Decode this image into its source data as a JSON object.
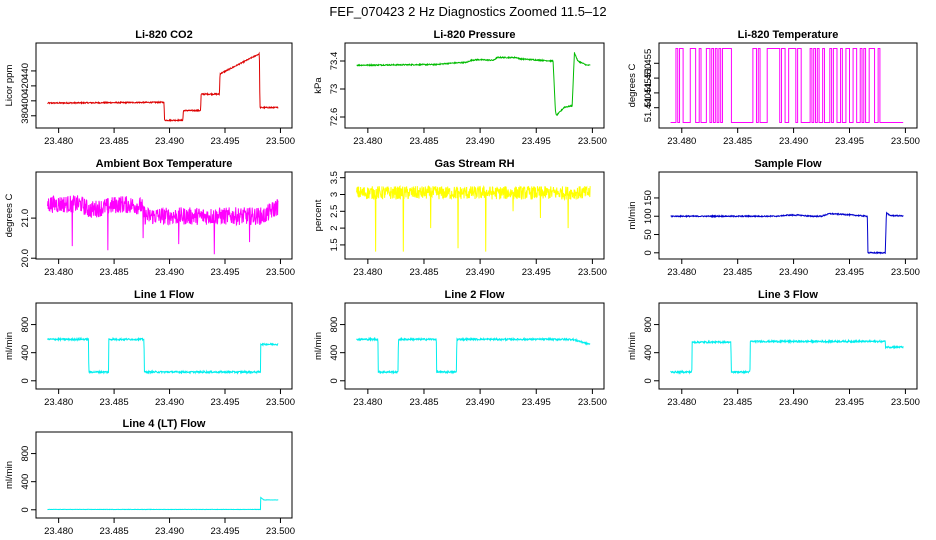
{
  "page": {
    "title": "FEF_070423  2 Hz Diagnostics Zoomed 11.5–12"
  },
  "chart_data": [
    {
      "type": "line",
      "title": "Li-820 CO2",
      "ylabel": "Licor ppm",
      "color": "#dd0000",
      "xlim": [
        23.4785,
        23.5005
      ],
      "ylim": [
        369,
        472
      ],
      "xticks": [
        23.48,
        23.485,
        23.49,
        23.495,
        23.5
      ],
      "yticks": [
        380,
        400,
        420,
        440
      ],
      "x": [
        23.479,
        23.4895,
        23.48955,
        23.4912,
        23.49125,
        23.4928,
        23.49285,
        23.4945,
        23.49455,
        23.4981,
        23.49815,
        23.4998
      ],
      "values": [
        397,
        398,
        374,
        374,
        387,
        387,
        409,
        409,
        436,
        463,
        391,
        391
      ],
      "noise": 0.8
    },
    {
      "type": "line",
      "title": "Li-820 Pressure",
      "ylabel": "kPa",
      "color": "#00bb00",
      "xlim": [
        23.4785,
        23.5005
      ],
      "ylim": [
        72.5,
        73.6
      ],
      "xticks": [
        23.48,
        23.485,
        23.49,
        23.495,
        23.5
      ],
      "yticks": [
        72.6,
        73.0,
        73.4
      ],
      "x": [
        23.479,
        23.486,
        23.4875,
        23.4888,
        23.4892,
        23.4898,
        23.4912,
        23.4915,
        23.4932,
        23.4936,
        23.4955,
        23.4965,
        23.4967,
        23.4968,
        23.4975,
        23.4982,
        23.4984,
        23.4987,
        23.4995,
        23.4998
      ],
      "values": [
        73.34,
        73.35,
        73.37,
        73.38,
        73.41,
        73.42,
        73.41,
        73.45,
        73.45,
        73.43,
        73.41,
        73.4,
        72.7,
        72.62,
        72.74,
        72.76,
        73.52,
        73.4,
        73.34,
        73.34
      ],
      "noise": 0.008
    },
    {
      "type": "line",
      "title": "Li-820 Temperature",
      "ylabel": "degrees C",
      "color": "#ff00ff",
      "xlim": [
        23.4785,
        23.5005
      ],
      "ylim": [
        51.4345,
        51.4605
      ],
      "xticks": [
        23.48,
        23.485,
        23.49,
        23.495,
        23.5
      ],
      "yticks": [
        51.44,
        51.445,
        51.45,
        51.455
      ],
      "tick_labels": [
        "51.440",
        "51.445",
        "51.450",
        "51.455"
      ],
      "mode": "binary",
      "levels": [
        51.435,
        51.46
      ]
    },
    {
      "type": "line",
      "title": "Ambient Box Temperature",
      "ylabel": "degrees C",
      "color": "#ff00ff",
      "xlim": [
        23.4785,
        23.5005
      ],
      "ylim": [
        20.08,
        22.05
      ],
      "xticks": [
        23.48,
        23.485,
        23.49,
        23.495,
        23.5
      ],
      "yticks": [
        20.0,
        21.0
      ],
      "tick_labels": [
        "20.0",
        "21.0"
      ],
      "x": [
        23.479,
        23.482,
        23.4828,
        23.4855,
        23.4875,
        23.4878,
        23.4985,
        23.4998
      ],
      "values": [
        21.35,
        21.35,
        21.2,
        21.35,
        21.3,
        21.05,
        21.05,
        21.3
      ],
      "noise": 0.22,
      "spikes": [
        20.3,
        20.2,
        20.5,
        20.35,
        20.1,
        20.4
      ]
    },
    {
      "type": "line",
      "title": "Gas Stream RH",
      "ylabel": "percent",
      "color": "#ffff00",
      "xlim": [
        23.4785,
        23.5005
      ],
      "ylim": [
        1.2,
        3.55
      ],
      "xticks": [
        23.48,
        23.485,
        23.49,
        23.495,
        23.5
      ],
      "yticks": [
        1.5,
        2.0,
        2.5,
        3.0,
        3.5
      ],
      "x": [
        23.479,
        23.4998
      ],
      "values": [
        3.05,
        3.05
      ],
      "noise": 0.2,
      "spikes": [
        1.3,
        1.3,
        2.0,
        1.4,
        1.3,
        2.5,
        2.3,
        2.0
      ]
    },
    {
      "type": "line",
      "title": "Sample Flow",
      "ylabel": "ml/min",
      "color": "#0000cc",
      "xlim": [
        23.4785,
        23.5005
      ],
      "ylim": [
        -6,
        210
      ],
      "xticks": [
        23.48,
        23.485,
        23.49,
        23.495,
        23.5
      ],
      "yticks": [
        0,
        50,
        100,
        150
      ],
      "x": [
        23.479,
        23.4885,
        23.4895,
        23.4905,
        23.4915,
        23.4925,
        23.4932,
        23.4945,
        23.4966,
        23.49665,
        23.4982,
        23.4983,
        23.4986,
        23.4998
      ],
      "values": [
        100,
        100,
        103,
        103,
        100,
        100,
        107,
        105,
        100,
        0,
        0,
        110,
        102,
        101
      ],
      "noise": 1.5
    },
    {
      "type": "line",
      "title": "Line 1 Flow",
      "ylabel": "ml/min",
      "color": "#00eeee",
      "xlim": [
        23.4785,
        23.5005
      ],
      "ylim": [
        -60,
        1050
      ],
      "xticks": [
        23.48,
        23.485,
        23.49,
        23.495,
        23.5
      ],
      "yticks": [
        0,
        400,
        800
      ],
      "tick_labels": [
        "0",
        "400",
        "800"
      ],
      "x": [
        23.479,
        23.4827,
        23.48272,
        23.4845,
        23.48452,
        23.4877,
        23.48772,
        23.4982,
        23.49822,
        23.4998
      ],
      "values": [
        590,
        590,
        125,
        125,
        590,
        590,
        125,
        125,
        520,
        520
      ],
      "noise": 12
    },
    {
      "type": "line",
      "title": "Line 2 Flow",
      "ylabel": "ml/min",
      "color": "#00eeee",
      "xlim": [
        23.4785,
        23.5005
      ],
      "ylim": [
        -60,
        1050
      ],
      "xticks": [
        23.48,
        23.485,
        23.49,
        23.495,
        23.5
      ],
      "yticks": [
        0,
        400,
        800
      ],
      "tick_labels": [
        "0",
        "400",
        "800"
      ],
      "x": [
        23.479,
        23.4809,
        23.48092,
        23.4827,
        23.48272,
        23.4861,
        23.48612,
        23.4879,
        23.48792,
        23.4982,
        23.4998
      ],
      "values": [
        590,
        590,
        125,
        125,
        590,
        590,
        125,
        125,
        590,
        590,
        520
      ],
      "noise": 12
    },
    {
      "type": "line",
      "title": "Line 3 Flow",
      "ylabel": "ml/min",
      "color": "#00eeee",
      "xlim": [
        23.4785,
        23.5005
      ],
      "ylim": [
        -60,
        1050
      ],
      "xticks": [
        23.48,
        23.485,
        23.49,
        23.495,
        23.5
      ],
      "yticks": [
        0,
        400,
        800
      ],
      "tick_labels": [
        "0",
        "400",
        "800"
      ],
      "x": [
        23.479,
        23.4809,
        23.48092,
        23.4844,
        23.48442,
        23.4861,
        23.48612,
        23.4982,
        23.49822,
        23.4998
      ],
      "values": [
        125,
        125,
        550,
        550,
        125,
        125,
        560,
        560,
        480,
        480
      ],
      "noise": 12
    },
    {
      "type": "line",
      "title": "Line 4 (LT) Flow",
      "ylabel": "ml/min",
      "color": "#00eeee",
      "xlim": [
        23.4785,
        23.5005
      ],
      "ylim": [
        -60,
        1050
      ],
      "xticks": [
        23.48,
        23.485,
        23.49,
        23.495,
        23.5
      ],
      "yticks": [
        0,
        400,
        800
      ],
      "tick_labels": [
        "0",
        "400",
        "800"
      ],
      "x": [
        23.479,
        23.4982,
        23.49822,
        23.4985,
        23.4998
      ],
      "values": [
        5,
        5,
        175,
        140,
        140
      ],
      "noise": 2
    }
  ]
}
